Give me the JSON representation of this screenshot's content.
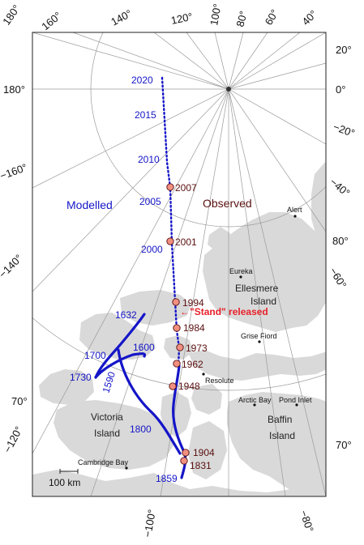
{
  "graticule": {
    "longitude_labels": [
      "180°",
      "160°",
      "140°",
      "120°",
      "100°",
      "80°",
      "60°",
      "40°",
      "20°",
      "0°",
      "−20°",
      "−40°",
      "180°",
      "−160°",
      "−140°",
      "−120°",
      "−100°",
      "−80°",
      "−60°"
    ],
    "latitude_labels": [
      "80°",
      "70°",
      "70°"
    ]
  },
  "regions": {
    "modelled": "Modelled",
    "observed": "Observed"
  },
  "modelled_years": [
    {
      "label": "2020"
    },
    {
      "label": "2015"
    },
    {
      "label": "2010"
    },
    {
      "label": "2005"
    },
    {
      "label": "2000"
    },
    {
      "label": "1632"
    },
    {
      "label": "1700"
    },
    {
      "label": "1600"
    },
    {
      "label": "1730"
    },
    {
      "label": "1590"
    },
    {
      "label": "1800"
    },
    {
      "label": "1859"
    }
  ],
  "observed_points": [
    {
      "label": "2007"
    },
    {
      "label": "2001"
    },
    {
      "label": "1994"
    },
    {
      "label": "1984"
    },
    {
      "label": "1973"
    },
    {
      "label": "1962"
    },
    {
      "label": "1948"
    },
    {
      "label": "1904"
    },
    {
      "label": "1831"
    }
  ],
  "annotation": "←\"Stand\" released",
  "places": [
    {
      "name": "Alert"
    },
    {
      "name": "Eureka"
    },
    {
      "name": "Grise Fiord"
    },
    {
      "name": "Resolute"
    },
    {
      "name": "Arctic Bay"
    },
    {
      "name": "Pond Inlet"
    },
    {
      "name": "Cambridge Bay"
    }
  ],
  "islands": {
    "ellesmere_1": "Ellesmere",
    "ellesmere_2": "Island",
    "victoria_1": "Victoria",
    "victoria_2": "Island",
    "baffin_1": "Baffin",
    "baffin_2": "Island"
  },
  "scale_bar": "100 km",
  "colors": {
    "modelled": "#1515c8",
    "observed_text": "#5a1010",
    "observed_marker": "#f09080",
    "annotation": "#e8202a",
    "land": "#d9d9d9",
    "graticule": "#9a9a9a"
  }
}
